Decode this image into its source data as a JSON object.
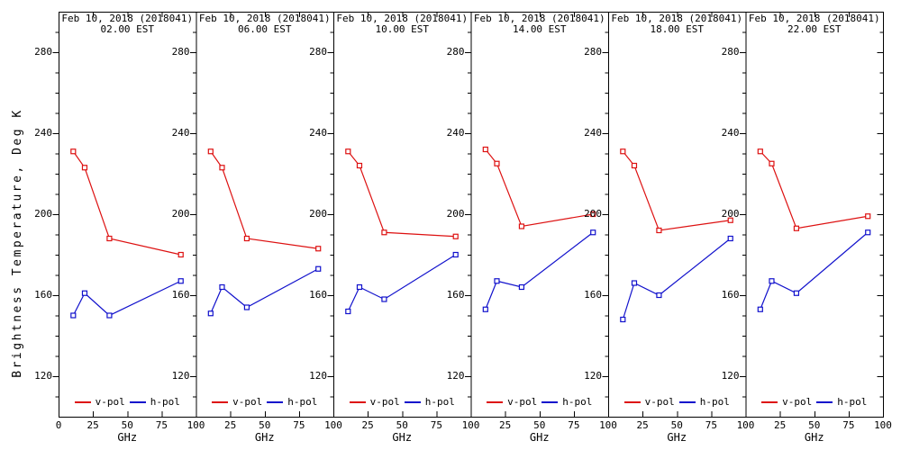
{
  "figure": {
    "ylabel": "Brightness Temperature, Deg K",
    "xlabel": "GHz",
    "background": "#ffffff",
    "axis_color": "#000000"
  },
  "colors": {
    "vpol": "#dd1111",
    "hpol": "#1111cc"
  },
  "axes": {
    "x_ticks": [
      0,
      25,
      50,
      75,
      100
    ],
    "x_range": [
      0,
      100
    ],
    "y_major_ticks": [
      120,
      160,
      200,
      240,
      280
    ],
    "y_minor_step": 10,
    "y_range": [
      100,
      300
    ],
    "grid": false,
    "legend_position": "inside-bottom-center"
  },
  "chart_data": [
    {
      "type": "line",
      "title_line1": "Feb 10, 2018 (2018041)",
      "title_line2": "02.00 EST",
      "xlabel": "GHz",
      "ylabel": "Brightness Temperature, Deg K",
      "xlim": [
        0,
        100
      ],
      "ylim": [
        100,
        300
      ],
      "x": [
        10.7,
        19.0,
        37.0,
        89.0
      ],
      "series": [
        {
          "name": "v-pol",
          "values": [
            231,
            223,
            188,
            180
          ]
        },
        {
          "name": "h-pol",
          "values": [
            150,
            161,
            150,
            167
          ]
        }
      ]
    },
    {
      "type": "line",
      "title_line1": "Feb 10, 2018 (2018041)",
      "title_line2": "06.00 EST",
      "xlabel": "GHz",
      "ylabel": "Brightness Temperature, Deg K",
      "xlim": [
        0,
        100
      ],
      "ylim": [
        100,
        300
      ],
      "x": [
        10.7,
        19.0,
        37.0,
        89.0
      ],
      "series": [
        {
          "name": "v-pol",
          "values": [
            231,
            223,
            188,
            183
          ]
        },
        {
          "name": "h-pol",
          "values": [
            151,
            164,
            154,
            173
          ]
        }
      ]
    },
    {
      "type": "line",
      "title_line1": "Feb 10, 2018 (2018041)",
      "title_line2": "10.00 EST",
      "xlabel": "GHz",
      "ylabel": "Brightness Temperature, Deg K",
      "xlim": [
        0,
        100
      ],
      "ylim": [
        100,
        300
      ],
      "x": [
        10.7,
        19.0,
        37.0,
        89.0
      ],
      "series": [
        {
          "name": "v-pol",
          "values": [
            231,
            224,
            191,
            189
          ]
        },
        {
          "name": "h-pol",
          "values": [
            152,
            164,
            158,
            180
          ]
        }
      ]
    },
    {
      "type": "line",
      "title_line1": "Feb 10, 2018 (2018041)",
      "title_line2": "14.00 EST",
      "xlabel": "GHz",
      "ylabel": "Brightness Temperature, Deg K",
      "xlim": [
        0,
        100
      ],
      "ylim": [
        100,
        300
      ],
      "x": [
        10.7,
        19.0,
        37.0,
        89.0
      ],
      "series": [
        {
          "name": "v-pol",
          "values": [
            232,
            225,
            194,
            200
          ]
        },
        {
          "name": "h-pol",
          "values": [
            153,
            167,
            164,
            191
          ]
        }
      ]
    },
    {
      "type": "line",
      "title_line1": "Feb 10, 2018 (2018041)",
      "title_line2": "18.00 EST",
      "xlabel": "GHz",
      "ylabel": "Brightness Temperature, Deg K",
      "xlim": [
        0,
        100
      ],
      "ylim": [
        100,
        300
      ],
      "x": [
        10.7,
        19.0,
        37.0,
        89.0
      ],
      "series": [
        {
          "name": "v-pol",
          "values": [
            231,
            224,
            192,
            197
          ]
        },
        {
          "name": "h-pol",
          "values": [
            148,
            166,
            160,
            188
          ]
        }
      ]
    },
    {
      "type": "line",
      "title_line1": "Feb 10, 2018 (2018041)",
      "title_line2": "22.00 EST",
      "xlabel": "GHz",
      "ylabel": "Brightness Temperature, Deg K",
      "xlim": [
        0,
        100
      ],
      "ylim": [
        100,
        300
      ],
      "x": [
        10.7,
        19.0,
        37.0,
        89.0
      ],
      "series": [
        {
          "name": "v-pol",
          "values": [
            231,
            225,
            193,
            199
          ]
        },
        {
          "name": "h-pol",
          "values": [
            153,
            167,
            161,
            191
          ]
        }
      ]
    }
  ]
}
